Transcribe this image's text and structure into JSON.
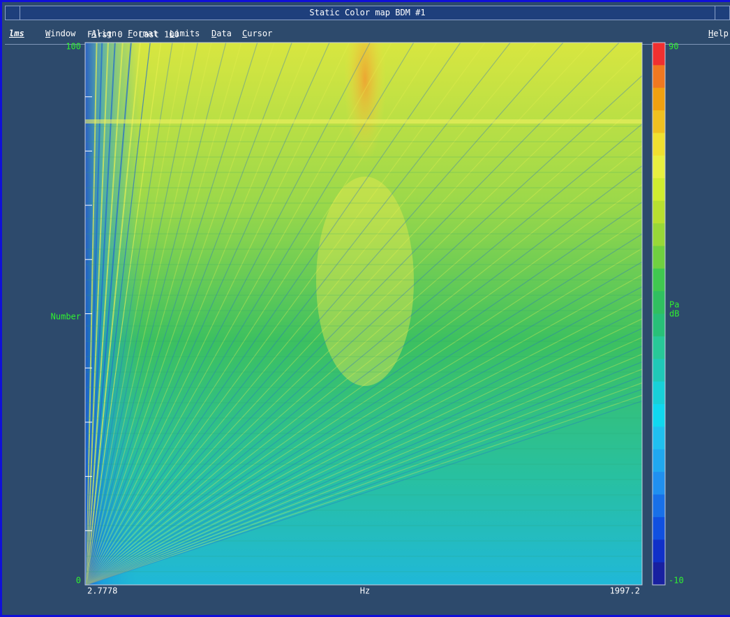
{
  "window": {
    "title": "Static Color map BDM #1"
  },
  "menu": {
    "logo": "lms",
    "items": [
      "Window",
      "Align",
      "Format",
      "Limits",
      "Data",
      "Cursor"
    ],
    "help": "Help"
  },
  "plot": {
    "range_first": "First 0",
    "range_last": "Last 100",
    "y_axis": {
      "label": "Number",
      "ticks": [
        0,
        100
      ]
    },
    "x_axis": {
      "label": "Hz",
      "ticks": [
        2.7778,
        1997.2
      ]
    },
    "colorbar": {
      "units": [
        "Pa",
        "dB"
      ],
      "ticks": [
        -10,
        90
      ]
    }
  }
}
